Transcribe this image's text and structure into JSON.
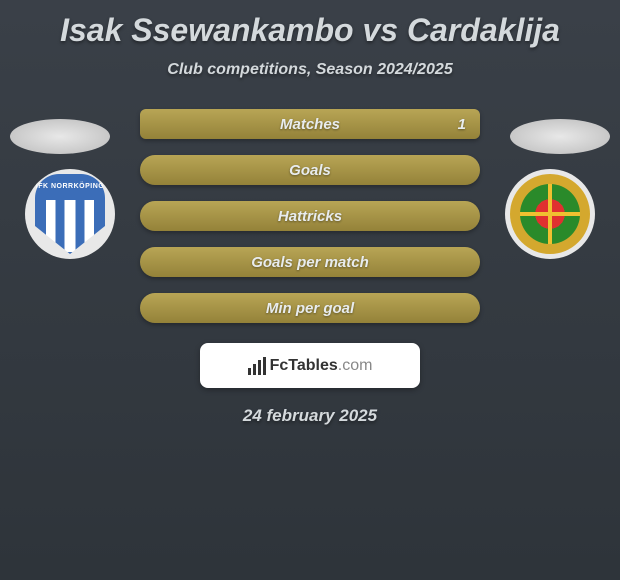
{
  "title": "Isak Ssewankambo vs Cardaklija",
  "subtitle": "Club competitions, Season 2024/2025",
  "club_left": {
    "name": "IFK NORRKÖPING",
    "shield_primary_color": "#3b6db8",
    "shield_secondary_color": "#ffffff"
  },
  "club_right": {
    "ring_outer_color": "#d4a82e",
    "ring_green_color": "#2a8a2a",
    "ring_red_color": "#e03030",
    "ring_cross_color": "#f0c030"
  },
  "stats": [
    {
      "label": "Matches",
      "value_right": "1"
    },
    {
      "label": "Goals"
    },
    {
      "label": "Hattricks"
    },
    {
      "label": "Goals per match"
    },
    {
      "label": "Min per goal"
    }
  ],
  "footer": {
    "brand_prefix": "Fc",
    "brand_main": "Tables",
    "brand_suffix": ".com"
  },
  "date": "24 february 2025",
  "colors": {
    "stat_row_bg_top": "#b8a555",
    "stat_row_bg_bottom": "#948239",
    "bg_gradient_top": "#3a4048",
    "bg_gradient_bottom": "#2e343a",
    "text_color": "#d4d9dc"
  }
}
